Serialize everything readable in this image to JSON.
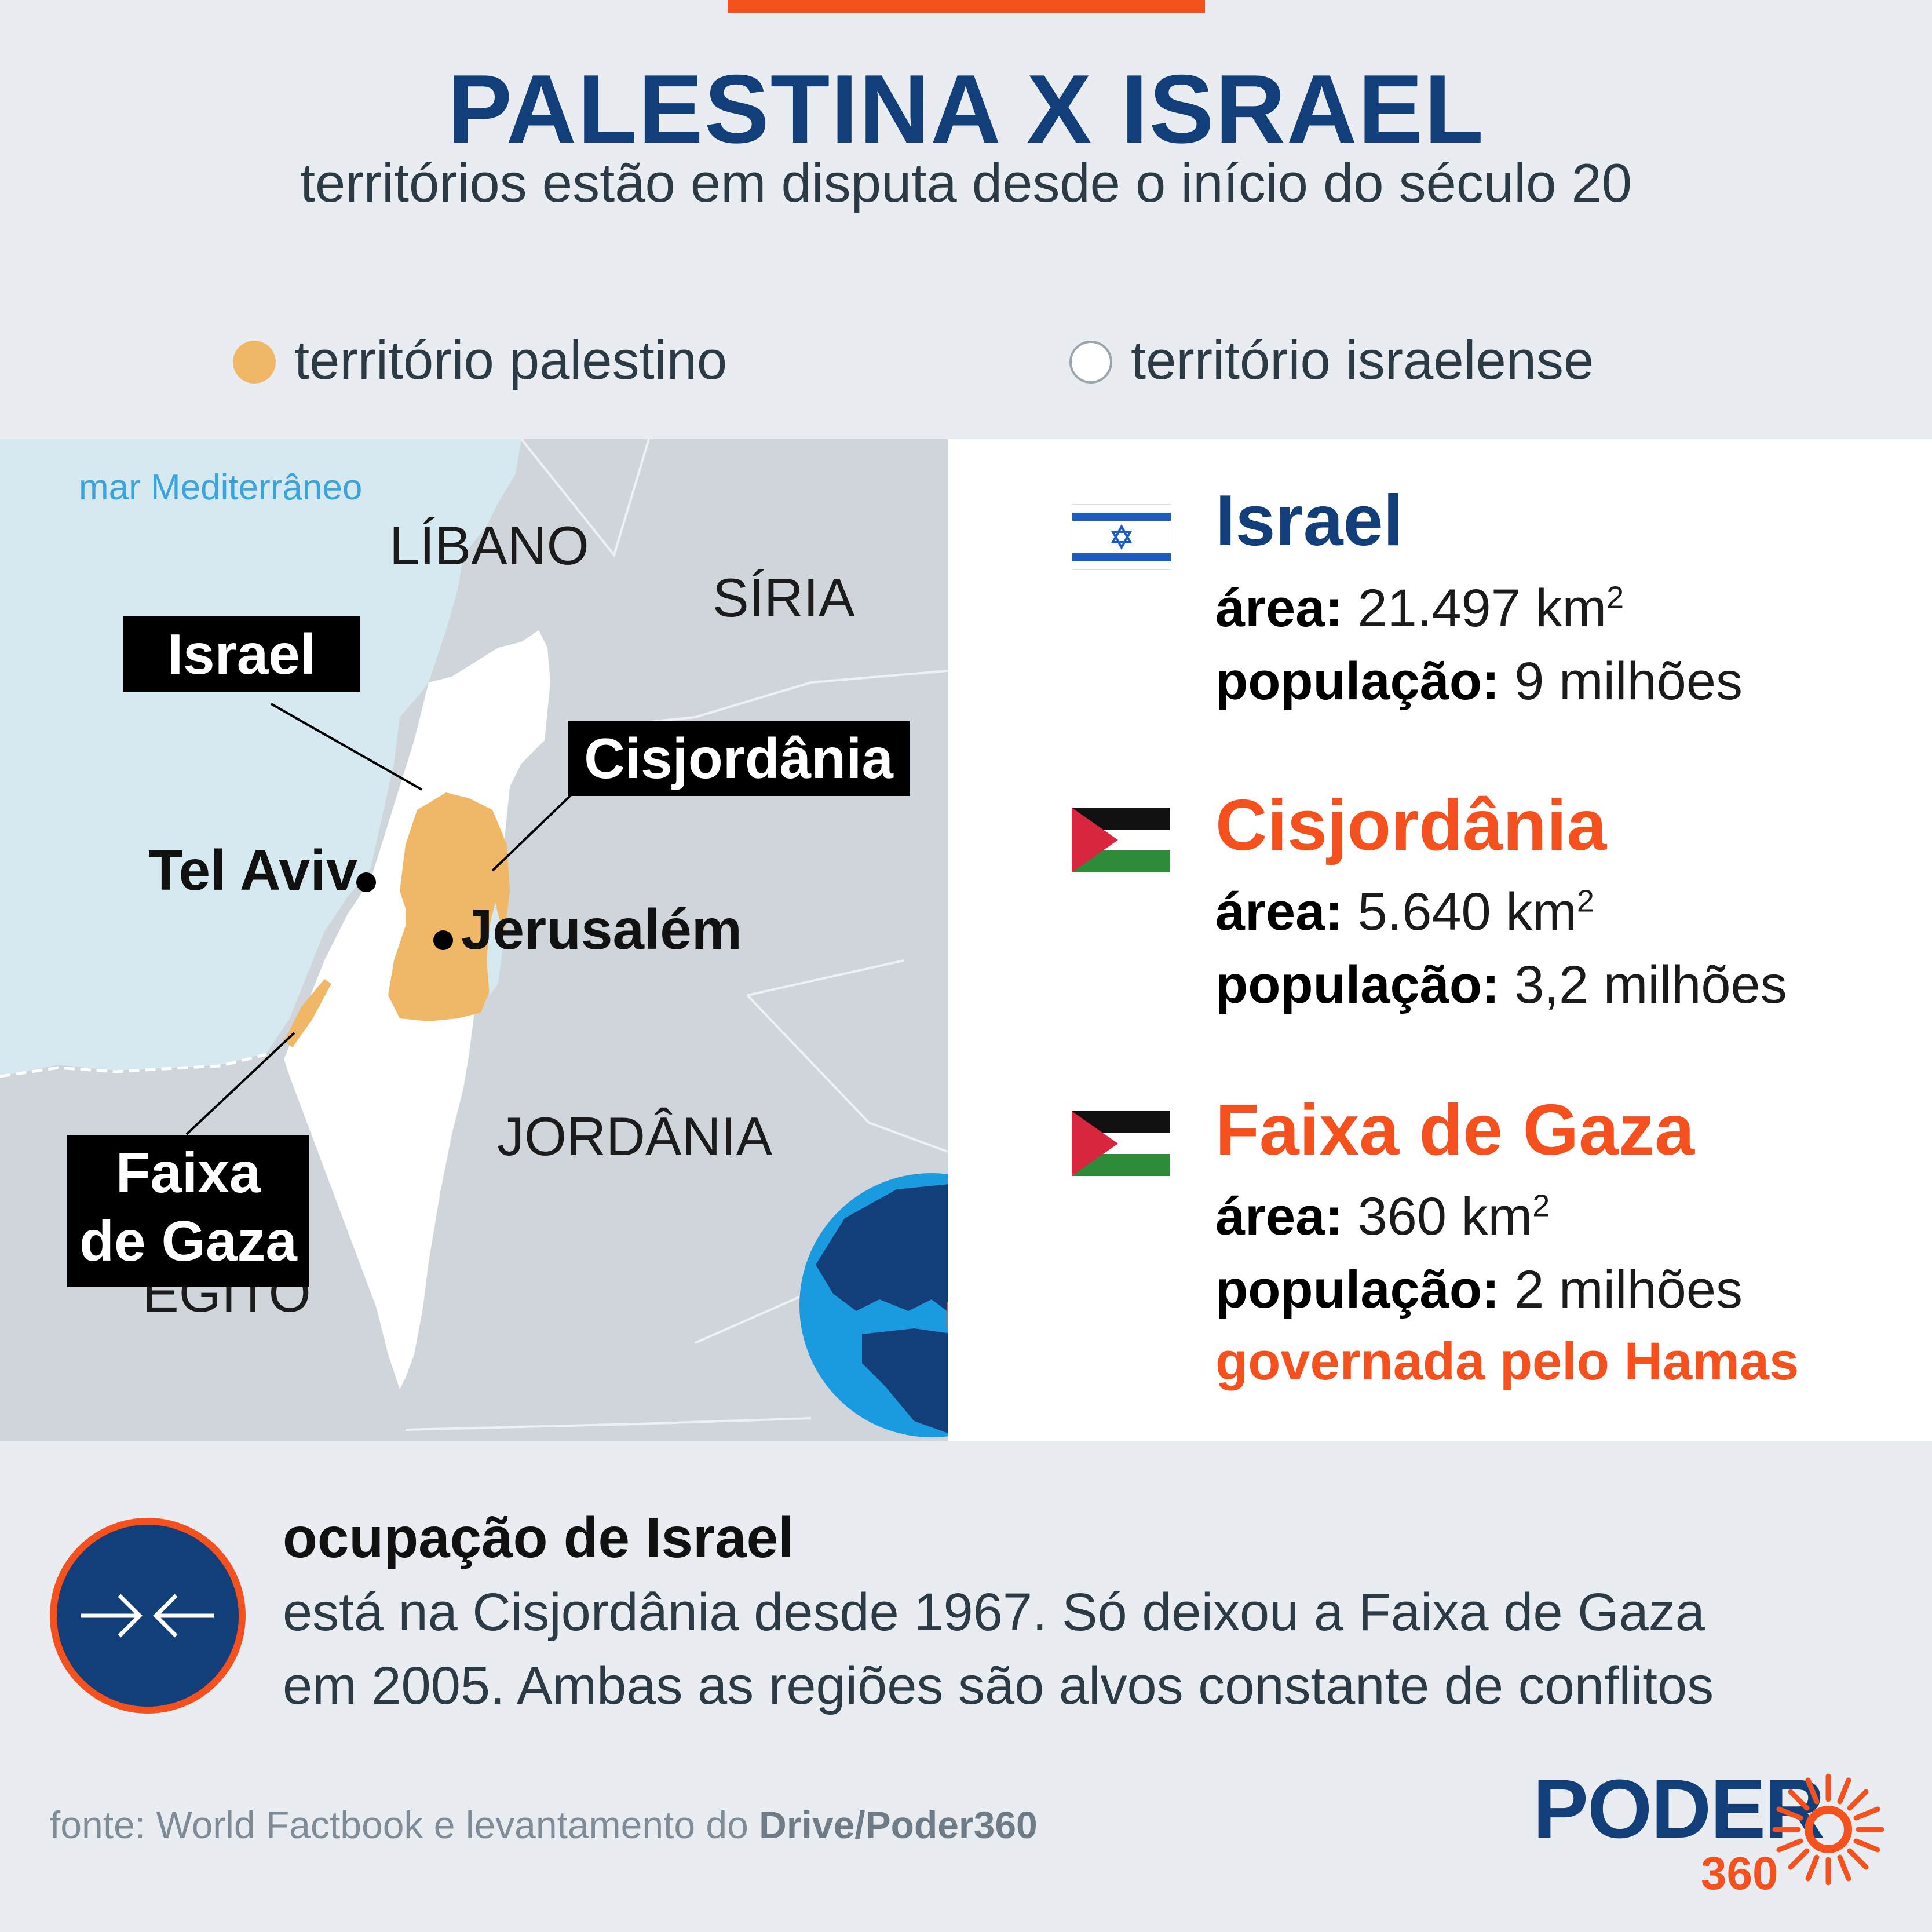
{
  "header": {
    "title": "PALESTINA X ISRAEL",
    "subtitle": "territórios estão em disputa desde o início do século 20"
  },
  "legend": {
    "palestinian": "território palestino",
    "israeli": "território israelense"
  },
  "map": {
    "sea": "mar Mediterrâneo",
    "countries": {
      "lebanon": "LÍBANO",
      "syria": "SÍRIA",
      "jordan": "JORDÂNIA",
      "egypt": "EGITO"
    },
    "callouts": {
      "israel": "Israel",
      "west_bank": "Cisjordânia",
      "gaza_line1": "Faixa",
      "gaza_line2": "de Gaza"
    },
    "cities": {
      "tel_aviv": "Tel Aviv",
      "jerusalem": "Jerusalém"
    }
  },
  "entities": [
    {
      "name": "Israel",
      "area_label": "área:",
      "area_value": "21.497 km",
      "area_unit_sup": "2",
      "pop_label": "população:",
      "pop_value": "9 milhões",
      "flag": "israel-flag-icon"
    },
    {
      "name": "Cisjordânia",
      "area_label": "área:",
      "area_value": "5.640 km",
      "area_unit_sup": "2",
      "pop_label": "população:",
      "pop_value": "3,2 milhões",
      "flag": "palestine-flag-icon"
    },
    {
      "name": "Faixa de Gaza",
      "area_label": "área:",
      "area_value": "360 km",
      "area_unit_sup": "2",
      "pop_label": "população:",
      "pop_value": "2 milhões",
      "note": "governada pelo Hamas",
      "flag": "palestine-flag-icon"
    }
  ],
  "occupation": {
    "title": "ocupação de Israel",
    "line1": "está na Cisjordânia desde 1967. Só deixou a Faixa de Gaza",
    "line2": "em 2005. Ambas as regiões são alvos constante de conflitos",
    "icon": "arrows-inward-icon"
  },
  "footer": {
    "source_prefix": "fonte: World Factbook e levantamento do ",
    "source_bold": "Drive/Poder360",
    "logo_word": "PODER",
    "logo_number": "360"
  },
  "colors": {
    "brand_blue": "#123f7a",
    "accent_orange": "#f4511e",
    "palestinian_territory": "#f0b866",
    "israeli_territory": "#ffffff",
    "sea": "#d6e8f0",
    "land": "#cfd5da"
  }
}
